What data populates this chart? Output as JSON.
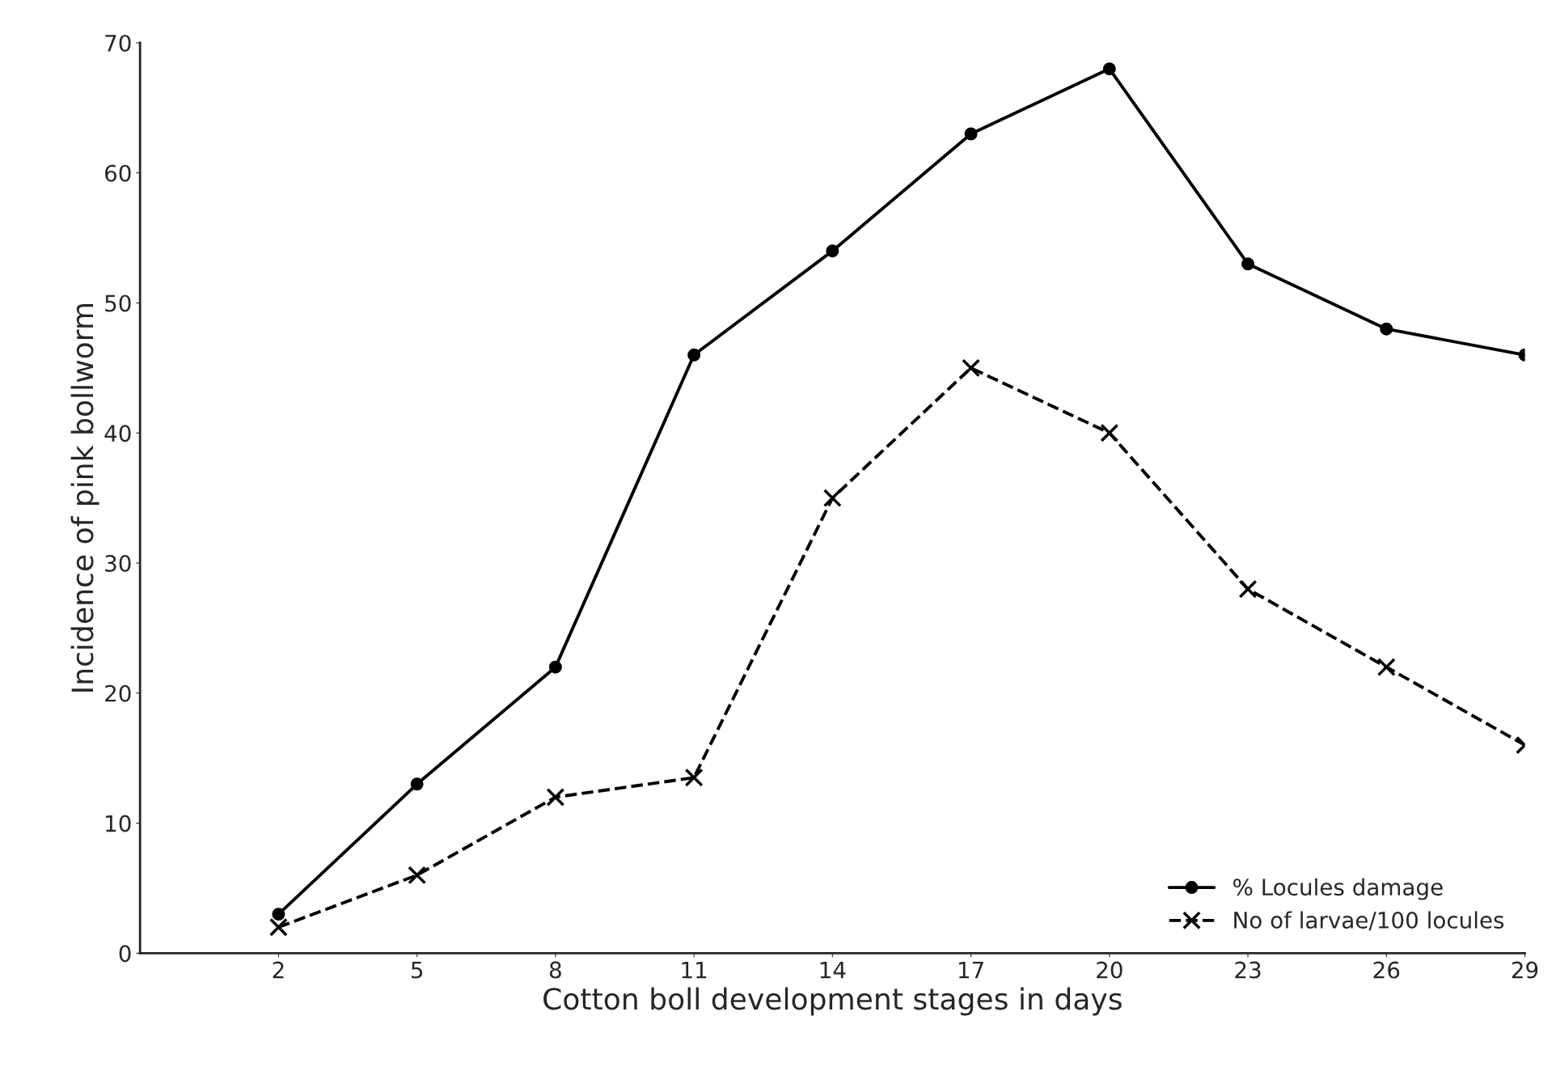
{
  "chart_data": {
    "type": "line",
    "xlabel": "Cotton boll development stages in days",
    "ylabel": "Incidence of pink bollworm",
    "x": [
      2,
      5,
      8,
      11,
      14,
      17,
      20,
      23,
      26,
      29
    ],
    "series": [
      {
        "name": "% Locules damage",
        "color": "#000000",
        "marker": "circle",
        "line_style": "solid",
        "values": [
          3,
          13,
          22,
          46,
          54,
          63,
          68,
          53,
          48,
          46
        ]
      },
      {
        "name": "No of larvae/100 locules",
        "color": "#000000",
        "marker": "cross",
        "line_style": "dashed",
        "values": [
          2,
          6,
          12,
          13.5,
          35,
          45,
          40,
          28,
          22,
          16
        ]
      }
    ],
    "xlim": [
      -1,
      29
    ],
    "xticks": [
      2,
      5,
      8,
      11,
      14,
      17,
      20,
      23,
      26,
      29
    ],
    "ylim": [
      0,
      70
    ],
    "yticks": [
      0,
      10,
      20,
      30,
      40,
      50,
      60,
      70
    ],
    "grid": false,
    "legend": "bottom right"
  }
}
